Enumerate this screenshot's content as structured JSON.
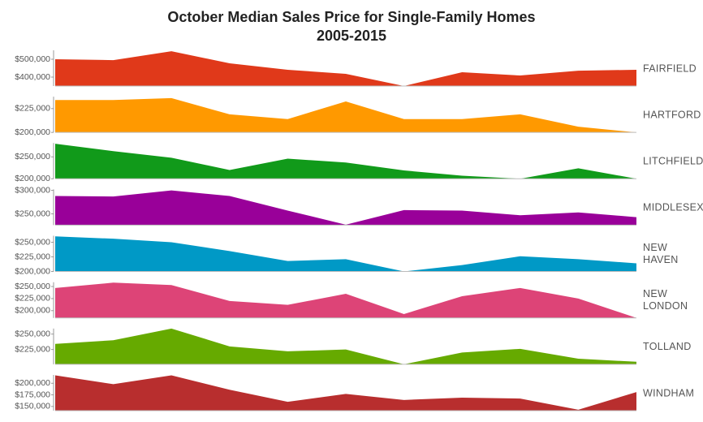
{
  "title": "October  Median Sales Price for Single-Family Homes",
  "subtitle": "2005-2015",
  "chart_data": [
    {
      "type": "area",
      "name": "FAIRFIELD",
      "color": "#e0391a",
      "values": [
        500000,
        495000,
        545000,
        477000,
        441000,
        418000,
        350000,
        427000,
        409000,
        436000,
        441000
      ],
      "ylim": [
        350000,
        550000
      ],
      "yticks": [
        {
          "value": 400000,
          "label": "$400,000"
        },
        {
          "value": 500000,
          "label": "$500,000"
        }
      ]
    },
    {
      "type": "area",
      "name": "HARTFORD",
      "color": "#ff9900",
      "values": [
        234000,
        234000,
        236000,
        219000,
        214000,
        232500,
        214000,
        214000,
        219000,
        206000,
        200000
      ],
      "ylim": [
        200000,
        237500
      ],
      "yticks": [
        {
          "value": 200000,
          "label": "$200,000"
        },
        {
          "value": 225000,
          "label": "$225,000"
        }
      ]
    },
    {
      "type": "area",
      "name": "LITCHFIELD",
      "color": "#119a1a",
      "values": [
        280000,
        263000,
        248000,
        220000,
        246000,
        237000,
        219000,
        207000,
        200000,
        224000,
        200000
      ],
      "ylim": [
        200000,
        281500
      ],
      "yticks": [
        {
          "value": 200000,
          "label": "$200,000"
        },
        {
          "value": 250000,
          "label": "$250,000"
        }
      ]
    },
    {
      "type": "area",
      "name": "MIDDLESEX",
      "color": "#990099",
      "values": [
        288000,
        287000,
        300000,
        288000,
        257000,
        227000,
        258000,
        257000,
        247000,
        253000,
        243000
      ],
      "ylim": [
        226000,
        302000
      ],
      "yticks": [
        {
          "value": 250000,
          "label": "$250,000"
        },
        {
          "value": 300000,
          "label": "$300,000"
        }
      ]
    },
    {
      "type": "area",
      "name": "NEW HAVEN",
      "color": "#0099c6",
      "values": [
        260000,
        256000,
        250000,
        235000,
        218000,
        221000,
        200000,
        211000,
        226000,
        221000,
        214000
      ],
      "ylim": [
        200000,
        261000
      ],
      "yticks": [
        {
          "value": 200000,
          "label": "$200,000"
        },
        {
          "value": 225000,
          "label": "$225,000"
        },
        {
          "value": 250000,
          "label": "$250,000"
        }
      ]
    },
    {
      "type": "area",
      "name": "NEW LONDON",
      "color": "#dd4477",
      "values": [
        247000,
        258000,
        253000,
        220000,
        212000,
        235000,
        193000,
        230000,
        247000,
        225000,
        185000
      ],
      "ylim": [
        185000,
        259000
      ],
      "yticks": [
        {
          "value": 200000,
          "label": "$200,000"
        },
        {
          "value": 225000,
          "label": "$225,000"
        },
        {
          "value": 250000,
          "label": "$250,000"
        }
      ]
    },
    {
      "type": "area",
      "name": "TOLLAND",
      "color": "#66aa00",
      "values": [
        234000,
        240000,
        259000,
        230000,
        222000,
        225000,
        201000,
        220000,
        226000,
        210000,
        205000
      ],
      "ylim": [
        201000,
        259000
      ],
      "yticks": [
        {
          "value": 225000,
          "label": "$225,000"
        },
        {
          "value": 250000,
          "label": "$250,000"
        }
      ]
    },
    {
      "type": "area",
      "name": "WINDHAM",
      "color": "#b82e2e",
      "values": [
        217000,
        198000,
        217000,
        186000,
        160000,
        177000,
        164000,
        169000,
        167000,
        143000,
        181000
      ],
      "ylim": [
        141000,
        218000
      ],
      "yticks": [
        {
          "value": 150000,
          "label": "$150,000"
        },
        {
          "value": 175000,
          "label": "$175,000"
        },
        {
          "value": 200000,
          "label": "$200,000"
        }
      ]
    }
  ]
}
